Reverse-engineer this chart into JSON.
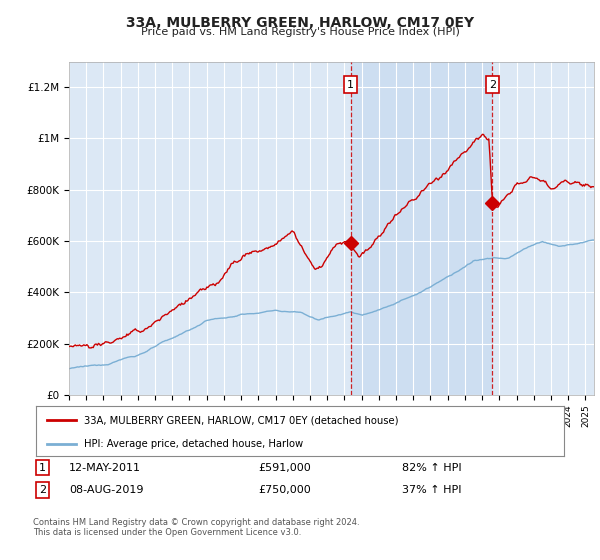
{
  "title": "33A, MULBERRY GREEN, HARLOW, CM17 0EY",
  "subtitle": "Price paid vs. HM Land Registry's House Price Index (HPI)",
  "ylabel_ticks": [
    "£0",
    "£200K",
    "£400K",
    "£600K",
    "£800K",
    "£1M",
    "£1.2M"
  ],
  "ytick_values": [
    0,
    200000,
    400000,
    600000,
    800000,
    1000000,
    1200000
  ],
  "ylim": [
    0,
    1300000
  ],
  "xlim_start": 1995.0,
  "xlim_end": 2025.5,
  "red_color": "#cc0000",
  "blue_color": "#7bafd4",
  "sale1_x": 2011.36,
  "sale1_y": 591000,
  "sale2_x": 2019.6,
  "sale2_y": 750000,
  "legend_line1": "33A, MULBERRY GREEN, HARLOW, CM17 0EY (detached house)",
  "legend_line2": "HPI: Average price, detached house, Harlow",
  "table_row1": [
    "1",
    "12-MAY-2011",
    "£591,000",
    "82% ↑ HPI"
  ],
  "table_row2": [
    "2",
    "08-AUG-2019",
    "£750,000",
    "37% ↑ HPI"
  ],
  "footnote": "Contains HM Land Registry data © Crown copyright and database right 2024.\nThis data is licensed under the Open Government Licence v3.0.",
  "background_plot": "#dce8f5",
  "background_fig": "#ffffff",
  "grid_color": "#ffffff",
  "shade_color": "#c8daf0",
  "dashed_line_color": "#cc0000"
}
